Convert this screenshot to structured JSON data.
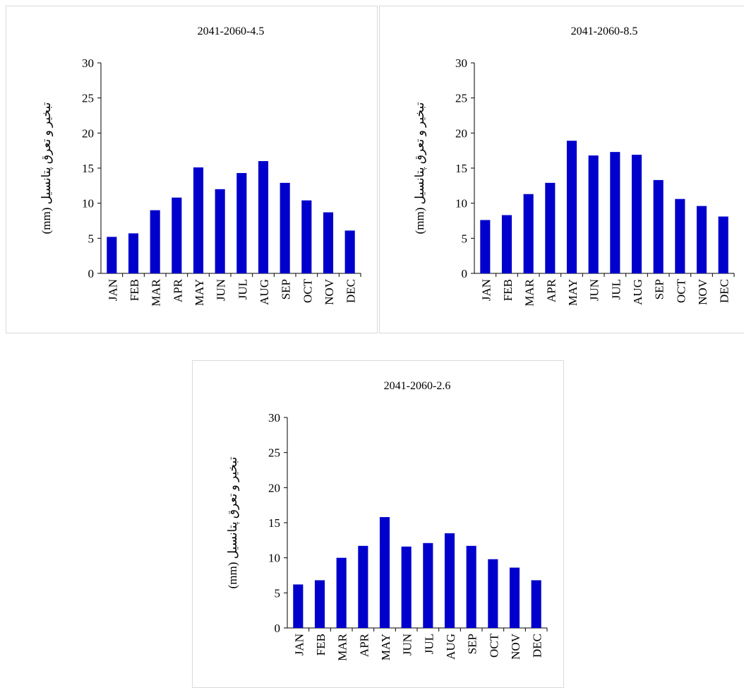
{
  "chart_data": [
    {
      "type": "bar",
      "title": "2041-2060-4.5",
      "y_label": "تبخیر و تعرق پتانسیل (mm)",
      "categories": [
        "JAN",
        "FEB",
        "MAR",
        "APR",
        "MAY",
        "JUN",
        "JUL",
        "AUG",
        "SEP",
        "OCT",
        "NOV",
        "DEC"
      ],
      "values": [
        5.2,
        5.7,
        9.0,
        10.8,
        15.1,
        12.0,
        14.3,
        16.0,
        12.9,
        10.4,
        8.7,
        6.1
      ],
      "color": "#0000cc",
      "ylim": [
        0,
        30
      ],
      "yticks": [
        0,
        5,
        10,
        15,
        20,
        25,
        30
      ]
    },
    {
      "type": "bar",
      "title": "2041-2060-8.5",
      "y_label": "تبخیر و تعرق پتانسیل (mm)",
      "categories": [
        "JAN",
        "FEB",
        "MAR",
        "APR",
        "MAY",
        "JUN",
        "JUL",
        "AUG",
        "SEP",
        "OCT",
        "NOV",
        "DEC"
      ],
      "values": [
        7.6,
        8.3,
        11.3,
        12.9,
        18.9,
        16.8,
        17.3,
        16.9,
        13.3,
        10.6,
        9.6,
        8.1
      ],
      "color": "#0000cc",
      "ylim": [
        0,
        30
      ],
      "yticks": [
        0,
        5,
        10,
        15,
        20,
        25,
        30
      ]
    },
    {
      "type": "bar",
      "title": "2041-2060-2.6",
      "y_label": "تبخیر و تعرق پتانسیل (mm)",
      "categories": [
        "JAN",
        "FEB",
        "MAR",
        "APR",
        "MAY",
        "JUN",
        "JUL",
        "AUG",
        "SEP",
        "OCT",
        "NOV",
        "DEC"
      ],
      "values": [
        6.2,
        6.8,
        10.0,
        11.7,
        15.8,
        11.6,
        12.1,
        13.5,
        11.7,
        9.8,
        8.6,
        6.8
      ],
      "color": "#0000cc",
      "ylim": [
        0,
        30
      ],
      "yticks": [
        0,
        5,
        10,
        15,
        20,
        25,
        30
      ]
    }
  ]
}
